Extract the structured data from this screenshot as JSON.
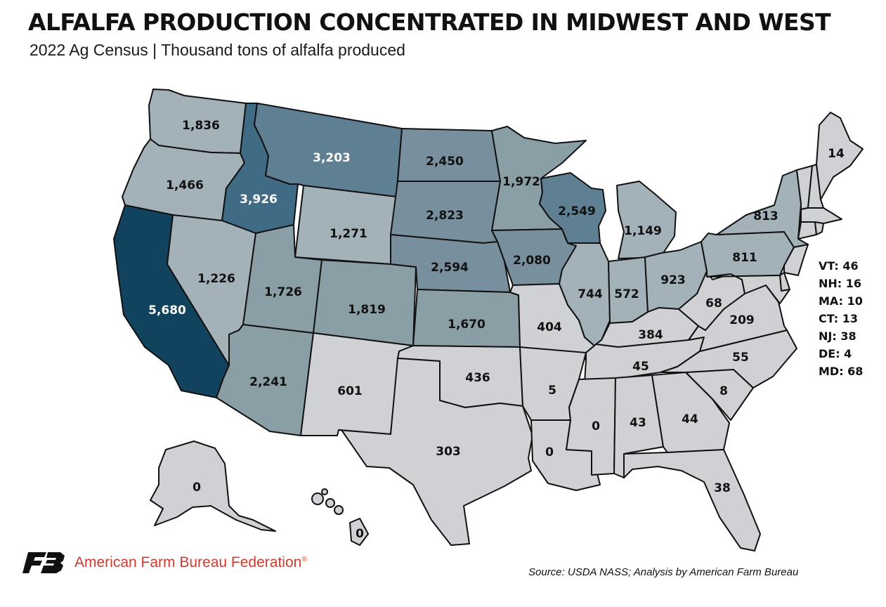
{
  "header": {
    "title": "ALFALFA PRODUCTION CONCENTRATED IN MIDWEST AND WEST",
    "subtitle": "2022 Ag Census | Thousand tons of alfalfa produced"
  },
  "colors": {
    "level_1": "#cfd1d4",
    "level_2": "#a3b1b8",
    "level_3": "#8a9ea6",
    "level_4": "#78909d",
    "level_5": "#5f7f93",
    "level_6": "#3f6b84",
    "level_7": "#12435e",
    "label_dark": "#111111",
    "label_light": "#ffffff",
    "brand_red": "#cf3b2f"
  },
  "states": [
    {
      "code": "WA",
      "value": "1,836"
    },
    {
      "code": "OR",
      "value": "1,466"
    },
    {
      "code": "CA",
      "value": "5,680"
    },
    {
      "code": "ID",
      "value": "3,926"
    },
    {
      "code": "NV",
      "value": "1,226"
    },
    {
      "code": "MT",
      "value": "3,203"
    },
    {
      "code": "WY",
      "value": "1,271"
    },
    {
      "code": "UT",
      "value": "1,726"
    },
    {
      "code": "AZ",
      "value": "2,241"
    },
    {
      "code": "CO",
      "value": "1,819"
    },
    {
      "code": "NM",
      "value": "601"
    },
    {
      "code": "ND",
      "value": "2,450"
    },
    {
      "code": "SD",
      "value": "2,823"
    },
    {
      "code": "NE",
      "value": "2,594"
    },
    {
      "code": "KS",
      "value": "1,670"
    },
    {
      "code": "OK",
      "value": "436"
    },
    {
      "code": "TX",
      "value": "303"
    },
    {
      "code": "MN",
      "value": "1,972"
    },
    {
      "code": "IA",
      "value": "2,080"
    },
    {
      "code": "MO",
      "value": "404"
    },
    {
      "code": "AR",
      "value": "5"
    },
    {
      "code": "LA",
      "value": "0"
    },
    {
      "code": "WI",
      "value": "2,549"
    },
    {
      "code": "IL",
      "value": "744"
    },
    {
      "code": "MI",
      "value": "1,149"
    },
    {
      "code": "IN",
      "value": "572"
    },
    {
      "code": "OH",
      "value": "923"
    },
    {
      "code": "KY",
      "value": "384"
    },
    {
      "code": "TN",
      "value": "45"
    },
    {
      "code": "MS",
      "value": "0"
    },
    {
      "code": "AL",
      "value": "43"
    },
    {
      "code": "GA",
      "value": "44"
    },
    {
      "code": "FL",
      "value": "38"
    },
    {
      "code": "SC",
      "value": "8"
    },
    {
      "code": "NC",
      "value": "55"
    },
    {
      "code": "VA",
      "value": "209"
    },
    {
      "code": "WV",
      "value": "68"
    },
    {
      "code": "PA",
      "value": "811"
    },
    {
      "code": "NY",
      "value": "813"
    },
    {
      "code": "ME",
      "value": "14"
    },
    {
      "code": "AK",
      "value": "0"
    },
    {
      "code": "HI",
      "value": "0"
    }
  ],
  "small_states": [
    {
      "code": "VT",
      "text": "VT: 46"
    },
    {
      "code": "NH",
      "text": "NH: 16"
    },
    {
      "code": "MA",
      "text": "MA: 10"
    },
    {
      "code": "CT",
      "text": "CT: 13"
    },
    {
      "code": "NJ",
      "text": "NJ: 38"
    },
    {
      "code": "DE",
      "text": "DE: 4"
    },
    {
      "code": "MD",
      "text": "MD: 68"
    }
  ],
  "footer": {
    "organization": "American Farm Bureau Federation",
    "trademark": "®",
    "logo_text": "FB",
    "source": "Source: USDA NASS; Analysis by American Farm Bureau"
  }
}
